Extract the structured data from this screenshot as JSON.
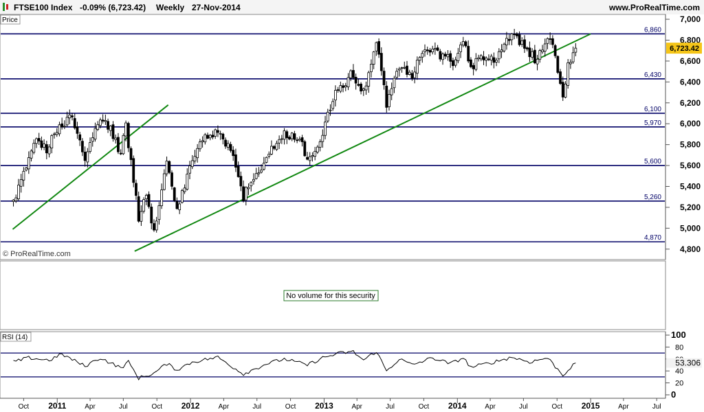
{
  "header": {
    "symbol": "FTSE100 Index",
    "change": "-0.09% (6,723.42)",
    "period": "Weekly",
    "date": "27-Nov-2014",
    "site": "www.ProRealTime.com"
  },
  "panels": {
    "price_label": "Price",
    "watermark": "© ProRealTime.com",
    "volume_message": "No volume for this security",
    "rsi_label": "RSI (14)",
    "rsi_value": "53.306"
  },
  "colors": {
    "candle": "#000000",
    "support_line": "#000066",
    "trend_line": "#118811",
    "last_price_box": "#f5c518",
    "rsi_line": "#000000",
    "rsi_band": "#000066"
  },
  "chart_data": [
    {
      "type": "candlestick",
      "ylim": [
        4700,
        7020
      ],
      "y_ticks": [
        4800,
        5000,
        5200,
        5400,
        5600,
        5800,
        6000,
        6200,
        6400,
        6600,
        6800,
        7000
      ],
      "y_tick_labels": [
        "4,800",
        "5,000",
        "5,200",
        "5,400",
        "5,600",
        "5,800",
        "6,000",
        "6,200",
        "6,400",
        "6,600",
        "6,800",
        "7,000"
      ],
      "x_tick_labels": [
        "Oct",
        "2011",
        "Apr",
        "Jul",
        "Oct",
        "2012",
        "Apr",
        "Jul",
        "Oct",
        "2013",
        "Apr",
        "Jul",
        "Oct",
        "2014",
        "Apr",
        "Jul",
        "Oct",
        "2015",
        "Apr",
        "Jul"
      ],
      "last_price": 6723.42,
      "last_price_label": "6,723.42",
      "horizontal_levels": [
        {
          "value": 6860,
          "label": "6,860"
        },
        {
          "value": 6430,
          "label": "6,430"
        },
        {
          "value": 6100,
          "label": "6,100"
        },
        {
          "value": 5970,
          "label": "5,970"
        },
        {
          "value": 5600,
          "label": "5,600"
        },
        {
          "value": 5260,
          "label": "5,260"
        },
        {
          "value": 4870,
          "label": "4,870"
        }
      ],
      "trend_lines": [
        {
          "from": [
            "2010-09",
            4990
          ],
          "to": [
            "2011-11",
            6180
          ]
        },
        {
          "from": [
            "2011-08",
            4780
          ],
          "to": [
            "2015-01",
            6860
          ]
        }
      ],
      "anchors": [
        [
          "2010-09-03",
          5250
        ],
        [
          "2010-10-01",
          5550
        ],
        [
          "2010-11-05",
          5850
        ],
        [
          "2010-12-03",
          5750
        ],
        [
          "2011-01-07",
          6000
        ],
        [
          "2011-02-11",
          6050
        ],
        [
          "2011-03-18",
          5650
        ],
        [
          "2011-04-29",
          6060
        ],
        [
          "2011-05-27",
          5950
        ],
        [
          "2011-06-24",
          5700
        ],
        [
          "2011-07-08",
          5990
        ],
        [
          "2011-08-12",
          5100
        ],
        [
          "2011-09-02",
          5300
        ],
        [
          "2011-09-23",
          4950
        ],
        [
          "2011-10-28",
          5650
        ],
        [
          "2011-11-25",
          5150
        ],
        [
          "2011-12-23",
          5500
        ],
        [
          "2012-02-03",
          5850
        ],
        [
          "2012-03-16",
          5950
        ],
        [
          "2012-04-27",
          5700
        ],
        [
          "2012-05-25",
          5300
        ],
        [
          "2012-06-15",
          5450
        ],
        [
          "2012-07-27",
          5650
        ],
        [
          "2012-08-17",
          5800
        ],
        [
          "2012-09-14",
          5900
        ],
        [
          "2012-10-26",
          5850
        ],
        [
          "2012-11-16",
          5650
        ],
        [
          "2012-12-28",
          5900
        ],
        [
          "2013-01-25",
          6250
        ],
        [
          "2013-02-22",
          6350
        ],
        [
          "2013-03-15",
          6500
        ],
        [
          "2013-04-19",
          6300
        ],
        [
          "2013-05-24",
          6800
        ],
        [
          "2013-06-21",
          6200
        ],
        [
          "2013-07-26",
          6550
        ],
        [
          "2013-08-30",
          6450
        ],
        [
          "2013-09-20",
          6650
        ],
        [
          "2013-10-25",
          6700
        ],
        [
          "2013-11-22",
          6650
        ],
        [
          "2013-12-20",
          6600
        ],
        [
          "2014-01-17",
          6800
        ],
        [
          "2014-02-07",
          6550
        ],
        [
          "2014-03-14",
          6650
        ],
        [
          "2014-04-11",
          6600
        ],
        [
          "2014-05-16",
          6850
        ],
        [
          "2014-06-13",
          6800
        ],
        [
          "2014-07-11",
          6700
        ],
        [
          "2014-08-08",
          6600
        ],
        [
          "2014-09-05",
          6850
        ],
        [
          "2014-09-19",
          6790
        ],
        [
          "2014-10-03",
          6450
        ],
        [
          "2014-10-17",
          6300
        ],
        [
          "2014-10-31",
          6550
        ],
        [
          "2014-11-14",
          6650
        ],
        [
          "2014-11-27",
          6723
        ]
      ]
    },
    {
      "type": "line",
      "name": "RSI (14)",
      "ylim": [
        0,
        100
      ],
      "y_ticks": [
        0,
        20,
        40,
        60,
        80,
        100
      ],
      "bands": [
        70,
        30
      ],
      "last_value": 53.306,
      "anchors": [
        [
          "2010-09-03",
          55
        ],
        [
          "2010-10-15",
          62
        ],
        [
          "2010-12-10",
          58
        ],
        [
          "2011-01-14",
          68
        ],
        [
          "2011-03-18",
          48
        ],
        [
          "2011-04-29",
          62
        ],
        [
          "2011-06-24",
          45
        ],
        [
          "2011-07-15",
          55
        ],
        [
          "2011-08-12",
          28
        ],
        [
          "2011-09-23",
          36
        ],
        [
          "2011-10-28",
          52
        ],
        [
          "2011-11-25",
          42
        ],
        [
          "2012-01-06",
          55
        ],
        [
          "2012-03-16",
          63
        ],
        [
          "2012-05-25",
          35
        ],
        [
          "2012-07-27",
          52
        ],
        [
          "2012-09-14",
          60
        ],
        [
          "2012-11-16",
          50
        ],
        [
          "2012-12-28",
          62
        ],
        [
          "2013-02-15",
          70
        ],
        [
          "2013-03-22",
          72
        ],
        [
          "2013-04-19",
          58
        ],
        [
          "2013-05-24",
          73
        ],
        [
          "2013-06-21",
          40
        ],
        [
          "2013-07-26",
          60
        ],
        [
          "2013-08-30",
          50
        ],
        [
          "2013-10-25",
          62
        ],
        [
          "2013-12-13",
          52
        ],
        [
          "2014-01-17",
          62
        ],
        [
          "2014-02-07",
          46
        ],
        [
          "2014-04-11",
          55
        ],
        [
          "2014-05-30",
          63
        ],
        [
          "2014-07-18",
          55
        ],
        [
          "2014-09-05",
          62
        ],
        [
          "2014-10-17",
          33
        ],
        [
          "2014-11-14",
          50
        ],
        [
          "2014-11-27",
          53.3
        ]
      ]
    }
  ]
}
